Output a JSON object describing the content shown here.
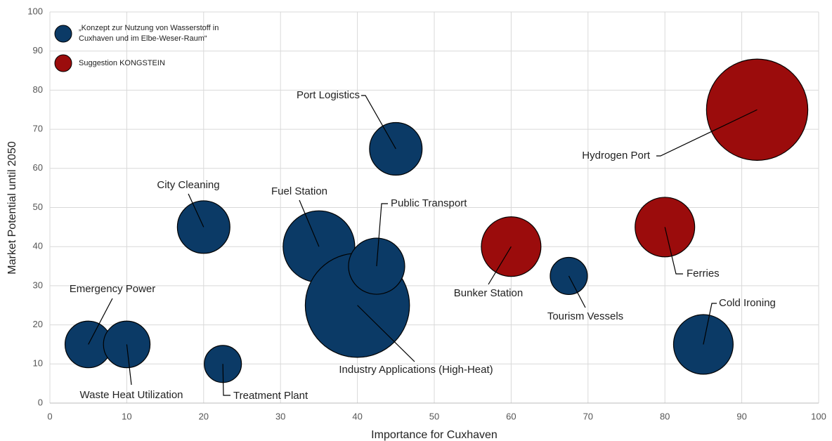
{
  "chart_data": {
    "type": "bubble",
    "x_label": "Importance for Cuxhaven",
    "y_label": "Market Potential until 2050",
    "xlim": [
      0,
      100
    ],
    "xticks": [
      0,
      10,
      20,
      30,
      40,
      50,
      60,
      70,
      80,
      90,
      100
    ],
    "ylim": [
      0,
      100
    ],
    "yticks": [
      0,
      10,
      20,
      30,
      40,
      50,
      60,
      70,
      80,
      90,
      100
    ],
    "grid": true,
    "legend": "upper left",
    "series": [
      {
        "name": "„Konzept zur Nutzung von Wasserstoff in Cuxhaven und im Elbe-Weser-Raum“",
        "color": "#0b3a66",
        "labels": [
          "Emergency Power",
          "Waste Heat Utilization",
          "Treatment Plant",
          "City Cleaning",
          "Fuel Station",
          "Industry Applications (High-Heat)",
          "Public Transport",
          "Port Logistics",
          "Tourism Vessels",
          "Cold Ironing"
        ],
        "x": [
          5,
          10,
          22.5,
          20,
          35,
          40,
          42.5,
          45,
          67.5,
          85
        ],
        "values": [
          15,
          15,
          10,
          45,
          40,
          25,
          35,
          65,
          32.5,
          15
        ],
        "sizes": [
          11,
          11,
          7,
          14,
          26,
          55,
          16,
          14,
          7,
          18
        ]
      },
      {
        "name": "Suggestion KONGSTEIN",
        "color": "#9b0c0c",
        "labels": [
          "Bunker Station",
          "Ferries",
          "Hydrogen Port"
        ],
        "x": [
          60,
          80,
          92
        ],
        "values": [
          40,
          45,
          75
        ],
        "sizes": [
          18,
          18,
          52
        ]
      }
    ]
  }
}
